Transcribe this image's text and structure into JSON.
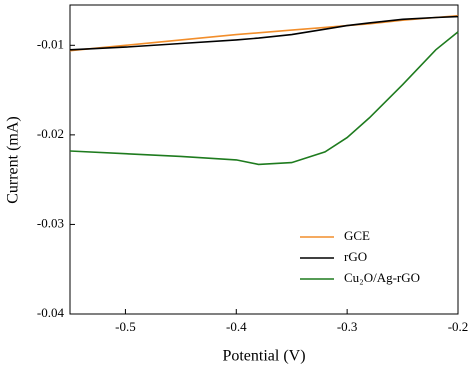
{
  "chart_data": {
    "type": "line",
    "x_label": "Potential (V)",
    "y_label": "Current (mA)",
    "x": [
      -0.55,
      -0.5,
      -0.45,
      -0.4,
      -0.38,
      -0.35,
      -0.32,
      -0.3,
      -0.28,
      -0.25,
      -0.22,
      -0.2
    ],
    "series": [
      {
        "name": "GCE",
        "color": "#f28e2b",
        "values": [
          -0.0106,
          -0.01,
          -0.0094,
          -0.0088,
          -0.0086,
          -0.0083,
          -0.008,
          -0.0078,
          -0.0076,
          -0.0072,
          -0.0069,
          -0.0067
        ]
      },
      {
        "name": "rGO",
        "color": "#000000",
        "values": [
          -0.0105,
          -0.0102,
          -0.0098,
          -0.0094,
          -0.0092,
          -0.0088,
          -0.0082,
          -0.0078,
          -0.0075,
          -0.0071,
          -0.0069,
          -0.0068
        ]
      },
      {
        "name": "Cu₂O/Ag-rGO",
        "color": "#1e7b1e",
        "values": [
          -0.0218,
          -0.0221,
          -0.0224,
          -0.0228,
          -0.0233,
          -0.0231,
          -0.0219,
          -0.0203,
          -0.0181,
          -0.0144,
          -0.0105,
          -0.0085
        ]
      }
    ],
    "xlim": [
      -0.55,
      -0.2
    ],
    "xticks": [
      -0.5,
      -0.4,
      -0.3,
      -0.2
    ],
    "ylim": [
      -0.04,
      -0.0055
    ],
    "yticks": [
      -0.04,
      -0.03,
      -0.02,
      -0.01
    ],
    "grid": false,
    "legend": "lower right"
  }
}
